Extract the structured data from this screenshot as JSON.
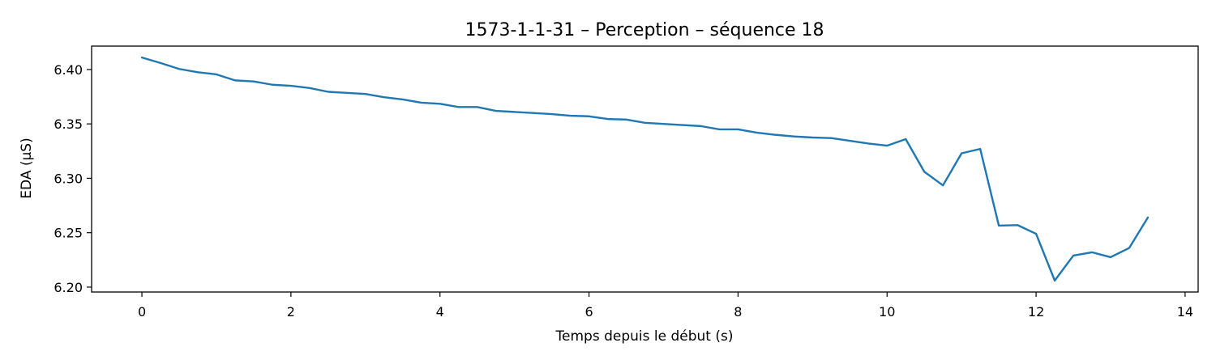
{
  "chart_data": {
    "type": "line",
    "title": "1573-1-1-31 – Perception – séquence 18",
    "xlabel": "Temps depuis le début (s)",
    "ylabel": "EDA (µS)",
    "xlim": [
      -0.675,
      14.175
    ],
    "ylim": [
      6.1955,
      6.4215
    ],
    "xticks": [
      0,
      2,
      4,
      6,
      8,
      10,
      12,
      14
    ],
    "xtick_labels": [
      "0",
      "2",
      "4",
      "6",
      "8",
      "10",
      "12",
      "14"
    ],
    "yticks": [
      6.2,
      6.25,
      6.3,
      6.35,
      6.4
    ],
    "ytick_labels": [
      "6.20",
      "6.25",
      "6.30",
      "6.35",
      "6.40"
    ],
    "grid": false,
    "series": [
      {
        "color": "#1f77b4",
        "x": [
          0,
          0.25,
          0.5,
          0.75,
          1.0,
          1.25,
          1.5,
          1.75,
          2.0,
          2.25,
          2.5,
          2.75,
          3.0,
          3.25,
          3.5,
          3.75,
          4.0,
          4.25,
          4.5,
          4.75,
          5.0,
          5.25,
          5.5,
          5.75,
          6.0,
          6.25,
          6.5,
          6.75,
          7.0,
          7.25,
          7.5,
          7.75,
          8.0,
          8.25,
          8.5,
          8.75,
          9.0,
          9.25,
          9.5,
          9.75,
          10.0,
          10.25,
          10.5,
          10.75,
          11.0,
          11.25,
          11.5,
          11.75,
          12.0,
          12.25,
          12.5,
          12.75,
          13.0,
          13.25,
          13.5
        ],
        "y": [
          6.411,
          6.406,
          6.4005,
          6.3975,
          6.3955,
          6.39,
          6.389,
          6.386,
          6.385,
          6.383,
          6.3795,
          6.3785,
          6.3775,
          6.3745,
          6.3725,
          6.3695,
          6.3685,
          6.3655,
          6.3655,
          6.362,
          6.361,
          6.36,
          6.359,
          6.3575,
          6.357,
          6.3545,
          6.354,
          6.351,
          6.35,
          6.349,
          6.348,
          6.345,
          6.345,
          6.342,
          6.34,
          6.3385,
          6.3375,
          6.337,
          6.3345,
          6.332,
          6.33,
          6.336,
          6.306,
          6.2935,
          6.323,
          6.327,
          6.2565,
          6.257,
          6.249,
          6.206,
          6.229,
          6.232,
          6.2275,
          6.236,
          6.264
        ]
      }
    ]
  }
}
